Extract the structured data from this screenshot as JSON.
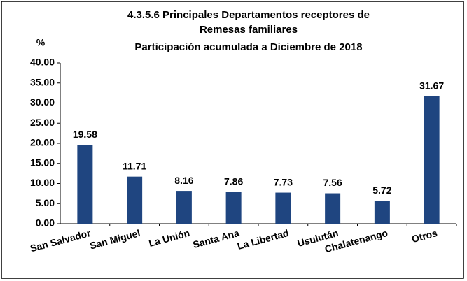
{
  "chart_data": {
    "type": "bar",
    "title": [
      "4.3.5.6 Principales Departamentos receptores de",
      "Remesas familiares"
    ],
    "subtitle": "Participación acumulada a Diciembre de 2018",
    "y_label": "%",
    "categories": [
      "San Salvador",
      "San Miguel",
      "La Unión",
      "Santa Ana",
      "La Libertad",
      "Usulután",
      "Chalatenango",
      "Otros"
    ],
    "values": [
      19.58,
      11.71,
      8.16,
      7.86,
      7.73,
      7.56,
      5.72,
      31.67
    ],
    "color": "#1f4580",
    "ylim": [
      0,
      40
    ],
    "yticks": [
      {
        "value": 0,
        "label": "0.00"
      },
      {
        "value": 5,
        "label": "5.00"
      },
      {
        "value": 10,
        "label": "10.00"
      },
      {
        "value": 15,
        "label": "15.00"
      },
      {
        "value": 20,
        "label": "20.00"
      },
      {
        "value": 25,
        "label": "25.00"
      },
      {
        "value": 30,
        "label": "30.00"
      },
      {
        "value": 35,
        "label": "35.00"
      },
      {
        "value": 40,
        "label": "40.00"
      }
    ],
    "grid": false
  }
}
